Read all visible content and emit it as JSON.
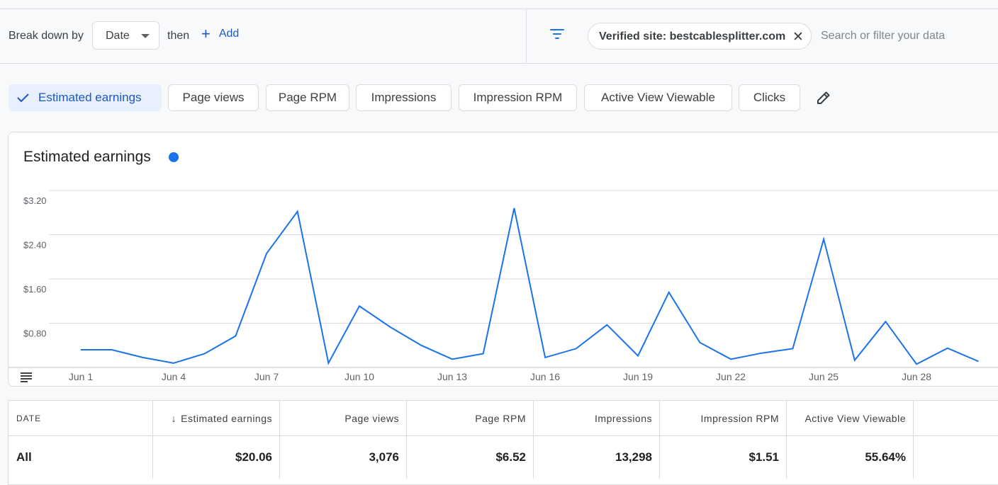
{
  "toolbar": {
    "breakdown_label": "Break down by",
    "breakdown_value": "Date",
    "then_label": "then",
    "add_label": "Add",
    "filter_chip": "Verified site: bestcablesplitter.com",
    "search_placeholder": "Search or filter your data"
  },
  "metrics": [
    {
      "label": "Estimated earnings",
      "active": true
    },
    {
      "label": "Page views",
      "active": false
    },
    {
      "label": "Page RPM",
      "active": false
    },
    {
      "label": "Impressions",
      "active": false
    },
    {
      "label": "Impression RPM",
      "active": false
    },
    {
      "label": "Active View Viewable",
      "active": false
    },
    {
      "label": "Clicks",
      "active": false
    }
  ],
  "chart": {
    "title": "Estimated earnings",
    "series_color": "#1a73e8"
  },
  "chart_data": {
    "type": "line",
    "title": "Estimated earnings",
    "x": [
      "Jun 1",
      "Jun 2",
      "Jun 3",
      "Jun 4",
      "Jun 5",
      "Jun 6",
      "Jun 7",
      "Jun 8",
      "Jun 9",
      "Jun 10",
      "Jun 11",
      "Jun 12",
      "Jun 13",
      "Jun 14",
      "Jun 15",
      "Jun 16",
      "Jun 17",
      "Jun 18",
      "Jun 19",
      "Jun 20",
      "Jun 21",
      "Jun 22",
      "Jun 23",
      "Jun 24",
      "Jun 25",
      "Jun 26",
      "Jun 27",
      "Jun 28",
      "Jun 29",
      "Jun 30"
    ],
    "x_ticks": [
      "Jun 1",
      "Jun 4",
      "Jun 7",
      "Jun 10",
      "Jun 13",
      "Jun 16",
      "Jun 19",
      "Jun 22",
      "Jun 25",
      "Jun 28"
    ],
    "y_ticks": [
      "$0.80",
      "$1.60",
      "$2.40",
      "$3.20"
    ],
    "ylim": [
      0,
      3.2
    ],
    "series": [
      {
        "values": [
          0.32,
          0.32,
          0.18,
          0.08,
          0.25,
          0.57,
          2.06,
          2.82,
          0.08,
          1.11,
          0.73,
          0.4,
          0.15,
          0.25,
          2.88,
          0.18,
          0.34,
          0.77,
          0.21,
          1.36,
          0.45,
          0.15,
          0.26,
          0.34,
          2.32,
          0.13,
          0.83,
          0.06,
          0.35,
          0.11
        ]
      }
    ],
    "grid": true
  },
  "table": {
    "headers": [
      "DATE",
      "Estimated earnings",
      "Page views",
      "Page RPM",
      "Impressions",
      "Impression RPM",
      "Active View Viewable"
    ],
    "rows": [
      [
        "All",
        "$20.06",
        "3,076",
        "$6.52",
        "13,298",
        "$1.51",
        "55.64%"
      ]
    ]
  }
}
